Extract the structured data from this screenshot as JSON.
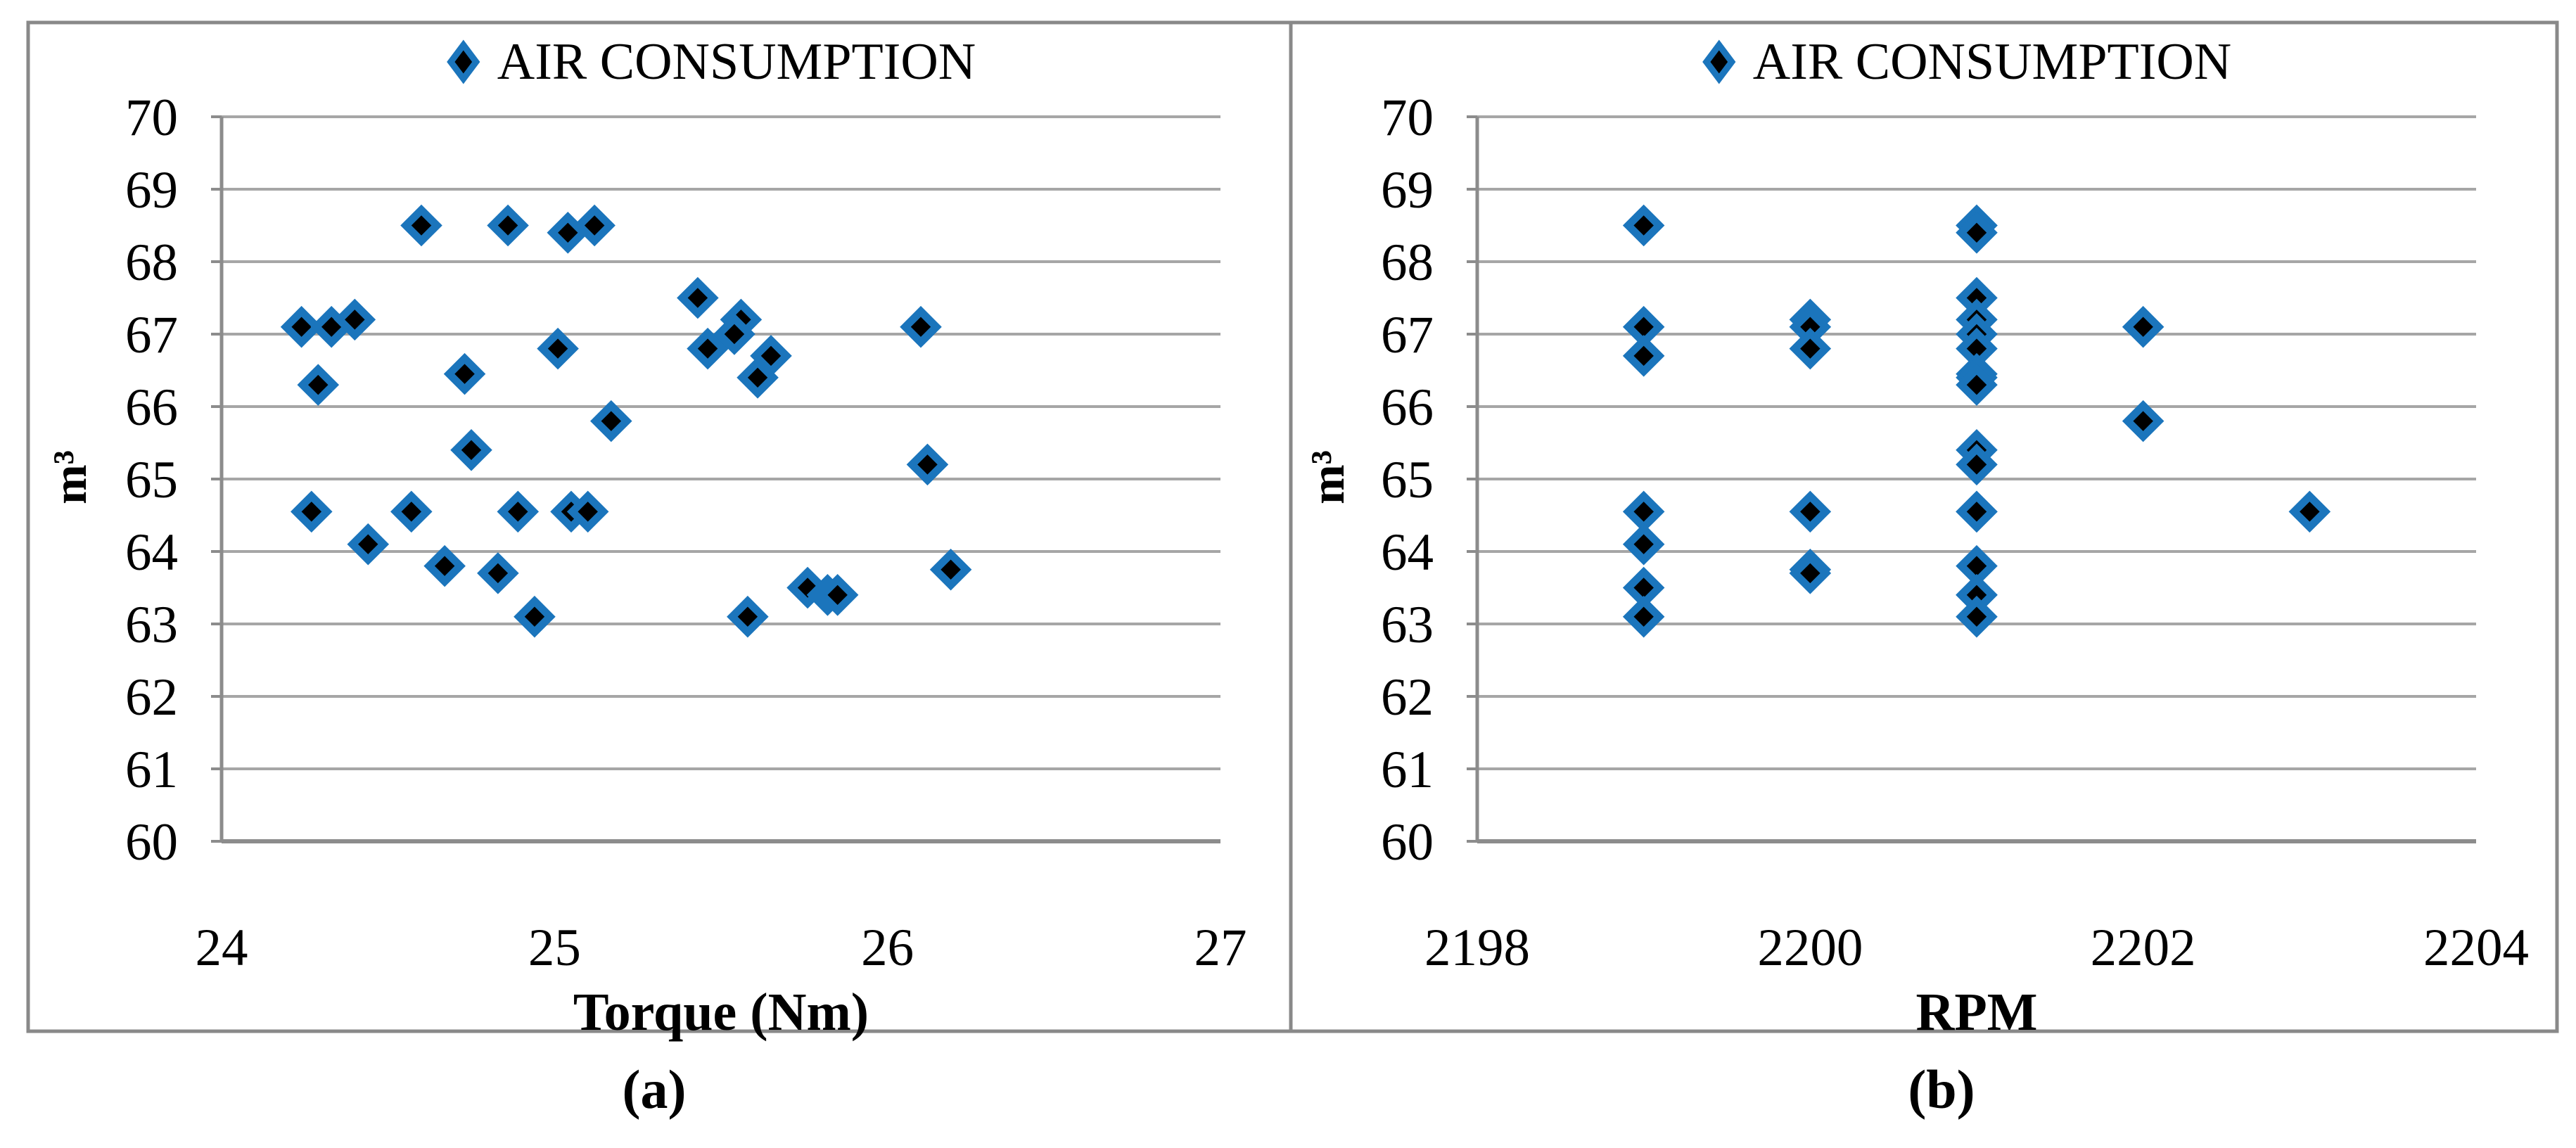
{
  "figure": {
    "panel_a_caption": "(a)",
    "panel_b_caption": "(b)"
  },
  "colors": {
    "marker_fill": "#000000",
    "marker_stroke": "#1B75BC",
    "gridline": "#A6A6A6",
    "axis": "#8C8C8C",
    "border": "#898989",
    "text": "#000000"
  },
  "chart_data": [
    {
      "type": "scatter",
      "title": "AIR CONSUMPTION",
      "xlabel": "Torque (Nm)",
      "ylabel": "m³",
      "xlim": [
        24,
        27
      ],
      "ylim": [
        60,
        70
      ],
      "xticks": [
        24,
        25,
        26,
        27
      ],
      "yticks": [
        70,
        69,
        68,
        67,
        66,
        65,
        64,
        63,
        62,
        61,
        60
      ],
      "grid": "horizontal",
      "legend_position": "top-center",
      "points": [
        [
          24.6,
          68.5
        ],
        [
          24.86,
          68.5
        ],
        [
          25.04,
          68.4
        ],
        [
          25.12,
          68.5
        ],
        [
          25.43,
          67.5
        ],
        [
          24.24,
          67.1
        ],
        [
          24.33,
          67.1
        ],
        [
          24.4,
          67.2
        ],
        [
          25.01,
          66.8
        ],
        [
          25.46,
          66.8
        ],
        [
          24.73,
          66.45
        ],
        [
          24.29,
          66.3
        ],
        [
          25.17,
          65.8
        ],
        [
          24.75,
          65.4
        ],
        [
          25.56,
          67.2
        ],
        [
          25.54,
          67.0
        ],
        [
          25.65,
          66.7
        ],
        [
          25.61,
          66.4
        ],
        [
          26.1,
          67.1
        ],
        [
          26.12,
          65.2
        ],
        [
          24.27,
          64.55
        ],
        [
          24.57,
          64.55
        ],
        [
          24.89,
          64.55
        ],
        [
          25.05,
          64.55
        ],
        [
          25.1,
          64.55
        ],
        [
          24.44,
          64.1
        ],
        [
          24.67,
          63.8
        ],
        [
          24.83,
          63.7
        ],
        [
          24.94,
          63.1
        ],
        [
          26.19,
          63.75
        ],
        [
          25.76,
          63.5
        ],
        [
          25.82,
          63.4
        ],
        [
          25.85,
          63.4
        ],
        [
          25.58,
          63.1
        ]
      ]
    },
    {
      "type": "scatter",
      "title": "AIR CONSUMPTION",
      "xlabel": "RPM",
      "ylabel": "m³",
      "xlim": [
        2198,
        2204
      ],
      "ylim": [
        60,
        70
      ],
      "xticks": [
        2198,
        2200,
        2202,
        2204
      ],
      "yticks": [
        70,
        69,
        68,
        67,
        66,
        65,
        64,
        63,
        62,
        61,
        60
      ],
      "grid": "horizontal",
      "legend_position": "top-center",
      "points": [
        [
          2199,
          68.5
        ],
        [
          2199,
          67.1
        ],
        [
          2199,
          66.7
        ],
        [
          2199,
          64.55
        ],
        [
          2199,
          64.1
        ],
        [
          2199,
          63.5
        ],
        [
          2199,
          63.1
        ],
        [
          2200,
          67.2
        ],
        [
          2200,
          67.1
        ],
        [
          2200,
          66.8
        ],
        [
          2200,
          64.55
        ],
        [
          2200,
          63.75
        ],
        [
          2200,
          63.7
        ],
        [
          2201,
          68.5
        ],
        [
          2201,
          68.5
        ],
        [
          2201,
          68.4
        ],
        [
          2201,
          67.5
        ],
        [
          2201,
          67.2
        ],
        [
          2201,
          67.0
        ],
        [
          2201,
          66.8
        ],
        [
          2201,
          66.45
        ],
        [
          2201,
          66.4
        ],
        [
          2201,
          66.3
        ],
        [
          2201,
          65.4
        ],
        [
          2201,
          65.2
        ],
        [
          2201,
          64.55
        ],
        [
          2201,
          64.55
        ],
        [
          2201,
          63.8
        ],
        [
          2201,
          63.4
        ],
        [
          2201,
          63.4
        ],
        [
          2201,
          63.1
        ],
        [
          2202,
          67.1
        ],
        [
          2202,
          65.8
        ],
        [
          2203,
          64.55
        ]
      ]
    }
  ]
}
